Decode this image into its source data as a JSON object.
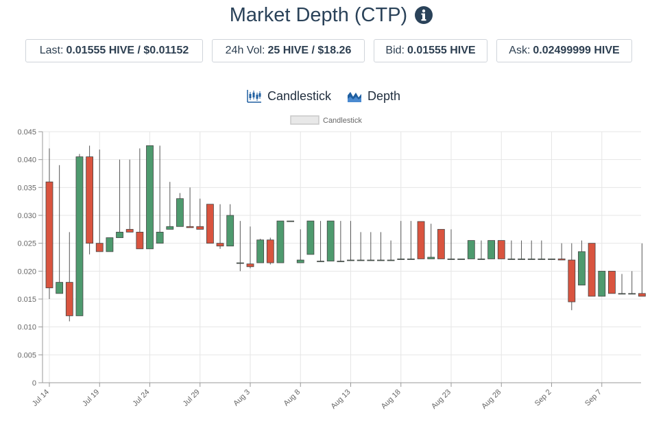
{
  "header": {
    "title": "Market Depth (CTP)",
    "info_icon": "info-circle-icon"
  },
  "stats": [
    {
      "label": "Last:",
      "value": "0.01555 HIVE / $0.01152"
    },
    {
      "label": "24h Vol:",
      "value": "25 HIVE / $18.26"
    },
    {
      "label": "Bid:",
      "value": "0.01555 HIVE"
    },
    {
      "label": "Ask:",
      "value": "0.02499999 HIVE"
    }
  ],
  "tabs": [
    {
      "label": "Candlestick",
      "icon": "candlestick-icon"
    },
    {
      "label": "Depth",
      "icon": "depth-chart-icon"
    }
  ],
  "colors": {
    "up": "#4e9a6e",
    "down": "#d9543f",
    "wick": "#555555",
    "grid": "#e6e6e6"
  },
  "chart_data": {
    "type": "candlestick",
    "legend": {
      "label": "Candlestick",
      "position": "top-center"
    },
    "ylim": [
      0,
      0.045
    ],
    "yticks": [
      "0",
      "0.005",
      "0.010",
      "0.015",
      "0.020",
      "0.025",
      "0.030",
      "0.035",
      "0.040",
      "0.045"
    ],
    "xticks": [
      "Jul 14",
      "Jul 19",
      "Jul 24",
      "Jul 29",
      "Aug 3",
      "Aug 8",
      "Aug 13",
      "Aug 18",
      "Aug 23",
      "Aug 28",
      "Sep 2",
      "Sep 7"
    ],
    "candles": [
      {
        "date": "Jul 14",
        "open": 0.036,
        "high": 0.042,
        "low": 0.015,
        "close": 0.017
      },
      {
        "date": "Jul 15",
        "open": 0.016,
        "high": 0.039,
        "low": 0.016,
        "close": 0.018
      },
      {
        "date": "Jul 16",
        "open": 0.018,
        "high": 0.027,
        "low": 0.011,
        "close": 0.012
      },
      {
        "date": "Jul 17",
        "open": 0.012,
        "high": 0.041,
        "low": 0.012,
        "close": 0.0405
      },
      {
        "date": "Jul 18",
        "open": 0.0405,
        "high": 0.0425,
        "low": 0.023,
        "close": 0.025
      },
      {
        "date": "Jul 19",
        "open": 0.025,
        "high": 0.0418,
        "low": 0.0235,
        "close": 0.0235
      },
      {
        "date": "Jul 20",
        "open": 0.0235,
        "high": 0.026,
        "low": 0.0235,
        "close": 0.026
      },
      {
        "date": "Jul 21",
        "open": 0.026,
        "high": 0.04,
        "low": 0.026,
        "close": 0.027
      },
      {
        "date": "Jul 22",
        "open": 0.0275,
        "high": 0.04,
        "low": 0.027,
        "close": 0.027
      },
      {
        "date": "Jul 23",
        "open": 0.027,
        "high": 0.042,
        "low": 0.024,
        "close": 0.024
      },
      {
        "date": "Jul 24",
        "open": 0.024,
        "high": 0.0425,
        "low": 0.024,
        "close": 0.0425
      },
      {
        "date": "Jul 25",
        "open": 0.025,
        "high": 0.0425,
        "low": 0.025,
        "close": 0.027
      },
      {
        "date": "Jul 26",
        "open": 0.0275,
        "high": 0.036,
        "low": 0.0275,
        "close": 0.028
      },
      {
        "date": "Jul 27",
        "open": 0.028,
        "high": 0.034,
        "low": 0.028,
        "close": 0.033
      },
      {
        "date": "Jul 28",
        "open": 0.028,
        "high": 0.035,
        "low": 0.0278,
        "close": 0.0278
      },
      {
        "date": "Jul 29",
        "open": 0.028,
        "high": 0.033,
        "low": 0.0275,
        "close": 0.0275
      },
      {
        "date": "Jul 30",
        "open": 0.032,
        "high": 0.032,
        "low": 0.025,
        "close": 0.025
      },
      {
        "date": "Jul 31",
        "open": 0.025,
        "high": 0.032,
        "low": 0.024,
        "close": 0.0245
      },
      {
        "date": "Aug 1",
        "open": 0.0245,
        "high": 0.032,
        "low": 0.0245,
        "close": 0.03
      },
      {
        "date": "Aug 2",
        "open": 0.0215,
        "high": 0.029,
        "low": 0.02,
        "close": 0.0215
      },
      {
        "date": "Aug 3",
        "open": 0.0213,
        "high": 0.028,
        "low": 0.0205,
        "close": 0.0208
      },
      {
        "date": "Aug 4",
        "open": 0.0215,
        "high": 0.0258,
        "low": 0.0215,
        "close": 0.0256
      },
      {
        "date": "Aug 5",
        "open": 0.0256,
        "high": 0.026,
        "low": 0.0212,
        "close": 0.0215
      },
      {
        "date": "Aug 6",
        "open": 0.0215,
        "high": 0.029,
        "low": 0.0215,
        "close": 0.029
      },
      {
        "date": "Aug 7",
        "open": 0.029,
        "high": 0.029,
        "low": 0.029,
        "close": 0.029
      },
      {
        "date": "Aug 8",
        "open": 0.0215,
        "high": 0.0275,
        "low": 0.0215,
        "close": 0.022
      },
      {
        "date": "Aug 9",
        "open": 0.023,
        "high": 0.029,
        "low": 0.023,
        "close": 0.029
      },
      {
        "date": "Aug 10",
        "open": 0.0218,
        "high": 0.029,
        "low": 0.0218,
        "close": 0.0218
      },
      {
        "date": "Aug 11",
        "open": 0.0218,
        "high": 0.029,
        "low": 0.0218,
        "close": 0.029
      },
      {
        "date": "Aug 12",
        "open": 0.0218,
        "high": 0.029,
        "low": 0.0218,
        "close": 0.0218
      },
      {
        "date": "Aug 13",
        "open": 0.022,
        "high": 0.029,
        "low": 0.022,
        "close": 0.022
      },
      {
        "date": "Aug 14",
        "open": 0.022,
        "high": 0.027,
        "low": 0.022,
        "close": 0.022
      },
      {
        "date": "Aug 15",
        "open": 0.022,
        "high": 0.027,
        "low": 0.022,
        "close": 0.022
      },
      {
        "date": "Aug 16",
        "open": 0.022,
        "high": 0.027,
        "low": 0.022,
        "close": 0.022
      },
      {
        "date": "Aug 17",
        "open": 0.022,
        "high": 0.0255,
        "low": 0.022,
        "close": 0.022
      },
      {
        "date": "Aug 18",
        "open": 0.0222,
        "high": 0.029,
        "low": 0.0222,
        "close": 0.0222
      },
      {
        "date": "Aug 19",
        "open": 0.0222,
        "high": 0.029,
        "low": 0.0222,
        "close": 0.0222
      },
      {
        "date": "Aug 20",
        "open": 0.0289,
        "high": 0.0289,
        "low": 0.0222,
        "close": 0.0222
      },
      {
        "date": "Aug 21",
        "open": 0.0222,
        "high": 0.0285,
        "low": 0.0222,
        "close": 0.0225
      },
      {
        "date": "Aug 22",
        "open": 0.0275,
        "high": 0.0275,
        "low": 0.0222,
        "close": 0.0222
      },
      {
        "date": "Aug 23",
        "open": 0.0222,
        "high": 0.0275,
        "low": 0.0222,
        "close": 0.0222
      },
      {
        "date": "Aug 24",
        "open": 0.0222,
        "high": 0.0222,
        "low": 0.0222,
        "close": 0.0222
      },
      {
        "date": "Aug 25",
        "open": 0.0222,
        "high": 0.0255,
        "low": 0.0222,
        "close": 0.0255
      },
      {
        "date": "Aug 26",
        "open": 0.0222,
        "high": 0.0255,
        "low": 0.0222,
        "close": 0.0222
      },
      {
        "date": "Aug 27",
        "open": 0.0222,
        "high": 0.0255,
        "low": 0.0222,
        "close": 0.0255
      },
      {
        "date": "Aug 28",
        "open": 0.0255,
        "high": 0.0255,
        "low": 0.0222,
        "close": 0.0222
      },
      {
        "date": "Aug 29",
        "open": 0.0222,
        "high": 0.0255,
        "low": 0.0222,
        "close": 0.0222
      },
      {
        "date": "Aug 30",
        "open": 0.0222,
        "high": 0.0255,
        "low": 0.0222,
        "close": 0.0222
      },
      {
        "date": "Aug 31",
        "open": 0.0222,
        "high": 0.0255,
        "low": 0.0222,
        "close": 0.0222
      },
      {
        "date": "Sep 1",
        "open": 0.0222,
        "high": 0.0255,
        "low": 0.0222,
        "close": 0.0222
      },
      {
        "date": "Sep 2",
        "open": 0.0222,
        "high": 0.0222,
        "low": 0.0222,
        "close": 0.0222
      },
      {
        "date": "Sep 3",
        "open": 0.0222,
        "high": 0.025,
        "low": 0.022,
        "close": 0.022
      },
      {
        "date": "Sep 4",
        "open": 0.022,
        "high": 0.025,
        "low": 0.013,
        "close": 0.0145
      },
      {
        "date": "Sep 5",
        "open": 0.0175,
        "high": 0.0255,
        "low": 0.0175,
        "close": 0.0235
      },
      {
        "date": "Sep 6",
        "open": 0.025,
        "high": 0.025,
        "low": 0.0155,
        "close": 0.0155
      },
      {
        "date": "Sep 7",
        "open": 0.0155,
        "high": 0.02,
        "low": 0.0155,
        "close": 0.02
      },
      {
        "date": "Sep 8",
        "open": 0.02,
        "high": 0.02,
        "low": 0.016,
        "close": 0.016
      },
      {
        "date": "Sep 9",
        "open": 0.016,
        "high": 0.0195,
        "low": 0.016,
        "close": 0.016
      },
      {
        "date": "Sep 10",
        "open": 0.016,
        "high": 0.02,
        "low": 0.016,
        "close": 0.016
      },
      {
        "date": "Sep 11",
        "open": 0.016,
        "high": 0.025,
        "low": 0.0155,
        "close": 0.0155
      }
    ]
  }
}
